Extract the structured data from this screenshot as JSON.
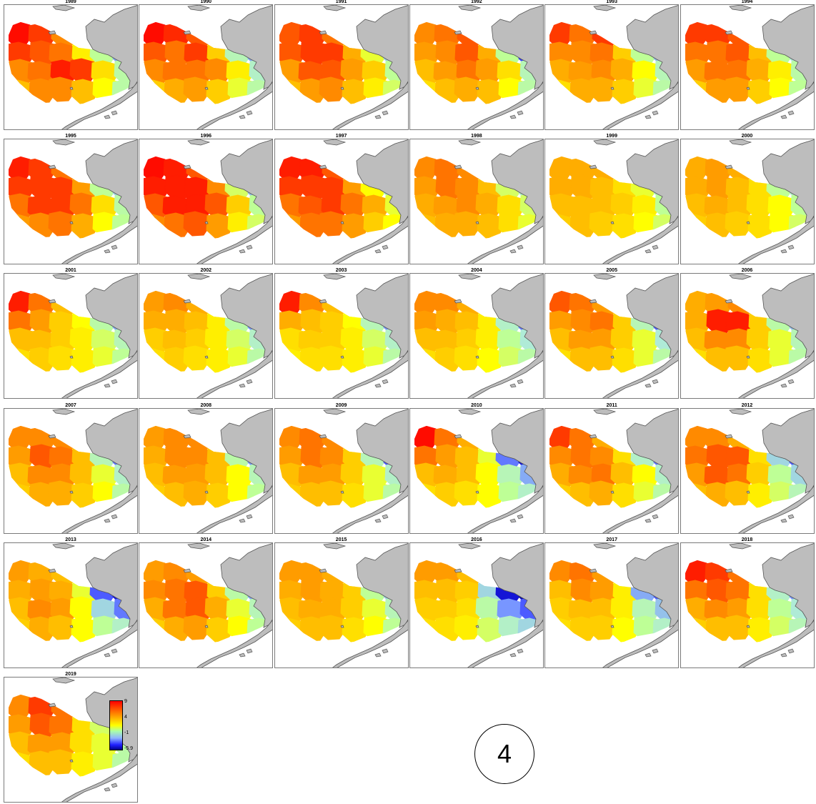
{
  "panels": [
    {
      "year": "1989",
      "levels": [
        8.8,
        8.0,
        6.5,
        3.5,
        0.5,
        -4.5,
        8.0,
        7.5,
        7.0,
        3.5,
        1.5,
        -2.0,
        6.5,
        7.0,
        8.5,
        8.0,
        4.0,
        1.0,
        5.0,
        6.5,
        6.5,
        5.0,
        3.0,
        1.0,
        4.0,
        4.5,
        3.5,
        2.0
      ]
    },
    {
      "year": "1990",
      "levels": [
        8.8,
        8.3,
        7.5,
        5.5,
        1.0,
        -3.5,
        7.5,
        7.0,
        8.0,
        4.5,
        0.5,
        -2.0,
        6.5,
        7.0,
        7.0,
        6.5,
        3.5,
        0.0,
        4.5,
        5.5,
        6.0,
        4.5,
        2.5,
        1.0,
        3.5,
        4.0,
        3.0,
        1.5
      ]
    },
    {
      "year": "1991",
      "levels": [
        7.5,
        8.0,
        7.0,
        5.0,
        1.0,
        -1.5,
        7.5,
        8.0,
        8.0,
        5.5,
        2.5,
        -1.0,
        6.0,
        7.5,
        7.5,
        6.0,
        4.5,
        1.5,
        5.0,
        6.0,
        6.5,
        5.0,
        3.5,
        2.0,
        3.5,
        4.5,
        3.5,
        2.0
      ]
    },
    {
      "year": "1992",
      "levels": [
        6.5,
        7.0,
        7.5,
        5.0,
        1.0,
        -3.0,
        6.0,
        6.5,
        7.5,
        5.5,
        1.5,
        -4.0,
        5.0,
        6.0,
        7.0,
        6.0,
        4.0,
        0.5,
        4.0,
        5.0,
        5.5,
        5.0,
        3.0,
        1.0,
        3.0,
        3.5,
        3.0,
        2.0
      ]
    },
    {
      "year": "1993",
      "levels": [
        8.0,
        7.0,
        8.0,
        5.0,
        1.0,
        -3.5,
        6.5,
        6.5,
        7.0,
        4.5,
        1.5,
        -1.5,
        5.5,
        6.0,
        6.5,
        5.5,
        3.0,
        0.5,
        4.0,
        5.5,
        5.5,
        4.5,
        2.5,
        1.0,
        3.0,
        4.0,
        3.0,
        1.5
      ]
    },
    {
      "year": "1994",
      "levels": [
        8.0,
        8.0,
        7.5,
        5.0,
        2.0,
        0.0,
        7.0,
        7.0,
        7.5,
        5.0,
        1.5,
        -0.5,
        6.0,
        7.0,
        7.0,
        5.5,
        3.5,
        1.0,
        4.5,
        6.0,
        6.0,
        4.5,
        3.0,
        1.5,
        3.5,
        4.5,
        3.5,
        2.0
      ]
    },
    {
      "year": "1995",
      "levels": [
        8.5,
        8.0,
        7.0,
        4.5,
        0.5,
        -2.0,
        8.0,
        8.0,
        8.0,
        6.0,
        1.5,
        -1.0,
        7.0,
        8.0,
        8.0,
        7.0,
        4.0,
        1.0,
        6.0,
        6.5,
        7.0,
        5.5,
        3.0,
        1.5,
        4.5,
        5.0,
        4.0,
        2.5
      ]
    },
    {
      "year": "1996",
      "levels": [
        8.8,
        8.5,
        7.5,
        5.0,
        1.0,
        -2.5,
        8.5,
        8.5,
        8.5,
        6.5,
        2.0,
        -1.5,
        7.5,
        8.5,
        8.5,
        7.5,
        4.5,
        1.5,
        6.5,
        7.0,
        7.5,
        6.0,
        3.5,
        2.0,
        5.0,
        5.5,
        4.5,
        3.0
      ]
    },
    {
      "year": "1997",
      "levels": [
        8.5,
        8.5,
        7.5,
        5.0,
        1.5,
        -1.0,
        8.0,
        8.0,
        8.0,
        6.0,
        3.0,
        0.5,
        7.0,
        7.5,
        8.0,
        7.0,
        5.5,
        2.5,
        6.0,
        7.0,
        7.0,
        6.0,
        4.5,
        3.0,
        5.0,
        5.5,
        4.5,
        3.5
      ]
    },
    {
      "year": "1998",
      "levels": [
        6.5,
        7.0,
        6.5,
        4.5,
        1.0,
        -1.5,
        6.0,
        7.0,
        6.5,
        5.0,
        2.0,
        0.0,
        5.5,
        6.0,
        6.5,
        5.5,
        4.0,
        2.0,
        5.0,
        5.5,
        5.5,
        5.0,
        4.0,
        2.5,
        4.0,
        4.5,
        4.0,
        3.5
      ]
    },
    {
      "year": "1999",
      "levels": [
        5.5,
        5.5,
        5.5,
        4.0,
        2.0,
        0.0,
        5.5,
        5.5,
        5.0,
        4.0,
        2.5,
        0.5,
        5.0,
        5.0,
        5.0,
        4.5,
        3.5,
        1.5,
        4.5,
        5.0,
        4.5,
        4.0,
        3.0,
        2.0,
        4.0,
        4.5,
        4.0,
        3.5
      ]
    },
    {
      "year": "2000",
      "levels": [
        5.5,
        6.0,
        5.5,
        4.0,
        1.0,
        -1.0,
        5.5,
        6.0,
        5.0,
        4.0,
        1.5,
        0.0,
        5.0,
        5.5,
        5.0,
        4.0,
        3.0,
        1.5,
        4.5,
        5.0,
        4.5,
        4.0,
        3.0,
        2.0,
        4.0,
        4.5,
        3.5,
        3.0
      ]
    },
    {
      "year": "2001",
      "levels": [
        8.5,
        7.0,
        5.0,
        3.0,
        1.0,
        -3.5,
        7.0,
        6.0,
        4.5,
        3.0,
        1.0,
        -2.0,
        5.0,
        5.0,
        4.5,
        3.5,
        2.0,
        0.5,
        4.0,
        4.5,
        4.0,
        3.5,
        2.5,
        1.5,
        3.0,
        4.0,
        3.5,
        2.5
      ]
    },
    {
      "year": "2002",
      "levels": [
        6.0,
        6.5,
        5.5,
        3.5,
        0.5,
        -4.0,
        5.5,
        5.5,
        5.0,
        3.5,
        1.0,
        -2.5,
        4.5,
        5.0,
        4.5,
        3.5,
        2.0,
        0.0,
        4.0,
        4.5,
        4.0,
        3.5,
        2.5,
        1.0,
        3.0,
        4.0,
        3.5,
        2.5
      ]
    },
    {
      "year": "2003",
      "levels": [
        8.5,
        6.5,
        5.0,
        3.0,
        -2.5,
        -4.5,
        5.5,
        5.0,
        4.5,
        3.0,
        0.5,
        -2.5,
        4.0,
        4.5,
        4.5,
        3.5,
        2.0,
        0.0,
        3.5,
        4.0,
        4.0,
        3.5,
        2.5,
        1.0,
        2.5,
        3.5,
        3.0,
        2.0
      ]
    },
    {
      "year": "2004",
      "levels": [
        6.5,
        6.5,
        5.5,
        3.5,
        -1.5,
        -4.5,
        6.0,
        5.5,
        5.0,
        3.5,
        0.0,
        -3.0,
        5.0,
        5.0,
        4.5,
        3.5,
        1.5,
        -0.5,
        4.0,
        4.5,
        4.0,
        3.0,
        2.0,
        1.0,
        3.0,
        3.5,
        3.0,
        2.0
      ]
    },
    {
      "year": "2005",
      "levels": [
        7.5,
        7.0,
        6.0,
        4.0,
        -1.0,
        -4.5,
        6.0,
        6.5,
        7.0,
        4.5,
        0.5,
        -3.5,
        5.0,
        6.0,
        6.0,
        4.5,
        2.5,
        -0.5,
        4.0,
        5.0,
        5.0,
        4.0,
        2.5,
        1.0,
        3.5,
        4.0,
        3.5,
        2.0
      ]
    },
    {
      "year": "2006",
      "levels": [
        5.5,
        6.0,
        6.5,
        3.0,
        0.5,
        -3.0,
        5.5,
        8.5,
        8.5,
        4.5,
        1.0,
        -1.5,
        5.0,
        6.5,
        6.5,
        4.5,
        2.5,
        0.5,
        4.0,
        5.0,
        5.0,
        4.0,
        2.5,
        1.0,
        3.5,
        4.0,
        3.5,
        2.0
      ]
    },
    {
      "year": "2007",
      "levels": [
        6.5,
        6.5,
        6.5,
        4.0,
        -1.0,
        -4.0,
        6.0,
        7.5,
        7.0,
        5.0,
        0.5,
        -3.0,
        5.0,
        6.5,
        6.5,
        5.0,
        2.5,
        0.0,
        4.5,
        5.5,
        5.5,
        4.5,
        3.0,
        1.0,
        3.5,
        4.5,
        4.0,
        2.5
      ]
    },
    {
      "year": "2008",
      "levels": [
        6.0,
        6.5,
        6.5,
        4.0,
        -0.5,
        -4.0,
        5.5,
        6.5,
        6.5,
        5.0,
        1.0,
        -2.5,
        5.0,
        6.0,
        6.0,
        5.0,
        3.0,
        0.5,
        4.5,
        5.0,
        5.5,
        4.5,
        3.0,
        1.5,
        3.5,
        4.5,
        4.0,
        2.5
      ]
    },
    {
      "year": "2009",
      "levels": [
        6.5,
        7.0,
        6.5,
        4.0,
        -2.0,
        -4.5,
        6.0,
        7.0,
        6.5,
        4.5,
        0.5,
        -3.5,
        5.0,
        6.0,
        6.0,
        4.5,
        2.5,
        0.0,
        4.5,
        5.0,
        5.0,
        4.0,
        2.5,
        1.0,
        3.5,
        4.0,
        3.5,
        2.5
      ]
    },
    {
      "year": "2010",
      "levels": [
        8.8,
        7.0,
        5.5,
        1.5,
        -4.5,
        -5.5,
        7.0,
        6.0,
        5.0,
        2.5,
        -3.0,
        -5.0,
        5.0,
        5.5,
        5.0,
        3.0,
        0.5,
        -2.0,
        4.0,
        4.5,
        4.0,
        3.0,
        1.5,
        0.0,
        3.0,
        3.5,
        3.0,
        2.0
      ]
    },
    {
      "year": "2011",
      "levels": [
        8.0,
        7.0,
        5.5,
        3.0,
        -3.0,
        -4.5,
        6.5,
        7.0,
        6.5,
        4.0,
        0.0,
        -3.0,
        5.5,
        6.5,
        7.0,
        5.0,
        3.0,
        0.0,
        4.5,
        5.0,
        5.5,
        4.0,
        2.5,
        1.0,
        3.5,
        4.0,
        3.5,
        2.5
      ]
    },
    {
      "year": "2012",
      "levels": [
        6.5,
        6.5,
        5.5,
        2.5,
        -3.0,
        -4.0,
        7.0,
        7.5,
        7.5,
        4.0,
        -1.0,
        -3.5,
        6.0,
        7.5,
        7.0,
        4.5,
        1.5,
        -1.0,
        5.0,
        5.5,
        5.0,
        3.5,
        2.0,
        0.5,
        3.5,
        4.5,
        3.5,
        2.0
      ]
    },
    {
      "year": "2013",
      "levels": [
        6.0,
        5.5,
        5.0,
        0.5,
        -4.5,
        -5.5,
        5.5,
        6.0,
        5.5,
        2.5,
        -3.5,
        -5.0,
        5.0,
        6.5,
        6.0,
        3.0,
        -1.0,
        -3.0,
        4.5,
        5.5,
        5.0,
        3.0,
        1.5,
        0.0,
        3.5,
        4.0,
        3.0,
        2.0
      ]
    },
    {
      "year": "2014",
      "levels": [
        6.0,
        6.5,
        6.0,
        3.5,
        -1.5,
        -4.0,
        6.5,
        7.0,
        7.5,
        4.5,
        1.0,
        -2.0,
        5.5,
        7.0,
        7.5,
        5.5,
        2.5,
        0.5,
        4.5,
        5.5,
        6.0,
        4.5,
        3.0,
        1.5,
        3.5,
        4.5,
        4.0,
        2.5
      ]
    },
    {
      "year": "2015",
      "levels": [
        6.0,
        6.0,
        5.5,
        4.0,
        0.0,
        -3.0,
        5.5,
        6.0,
        5.5,
        4.5,
        1.5,
        -1.0,
        5.0,
        5.5,
        5.5,
        4.5,
        2.5,
        0.5,
        4.5,
        5.0,
        5.0,
        4.0,
        3.0,
        1.5,
        3.5,
        4.5,
        4.0,
        3.0
      ]
    },
    {
      "year": "2016",
      "levels": [
        6.0,
        6.0,
        5.0,
        -0.5,
        -5.5,
        -5.9,
        5.0,
        5.0,
        4.5,
        -1.0,
        -5.0,
        -5.5,
        4.5,
        4.5,
        4.0,
        1.0,
        -2.5,
        -3.5,
        4.0,
        4.0,
        3.5,
        2.0,
        0.0,
        -1.0,
        3.0,
        3.5,
        3.0,
        2.0
      ]
    },
    {
      "year": "2017",
      "levels": [
        6.5,
        7.0,
        6.0,
        2.0,
        -3.5,
        -4.5,
        5.0,
        6.5,
        6.0,
        3.5,
        -2.0,
        -3.5,
        4.5,
        5.0,
        5.0,
        3.5,
        0.5,
        -1.5,
        4.0,
        4.5,
        4.5,
        3.0,
        1.5,
        0.0,
        3.0,
        3.5,
        3.0,
        2.0
      ]
    },
    {
      "year": "2018",
      "levels": [
        8.5,
        8.0,
        7.0,
        3.5,
        -1.0,
        -3.5,
        7.0,
        7.5,
        7.0,
        4.0,
        0.0,
        -2.5,
        5.5,
        6.5,
        6.0,
        4.0,
        1.5,
        -0.5,
        4.5,
        5.0,
        5.0,
        3.5,
        2.0,
        0.5,
        3.5,
        4.0,
        3.0,
        2.0
      ]
    },
    {
      "year": "2019",
      "levels": [
        6.5,
        8.0,
        7.0,
        3.5,
        1.0,
        0.0,
        6.0,
        7.5,
        7.0,
        4.0,
        2.0,
        0.5,
        5.0,
        6.0,
        6.0,
        4.0,
        2.5,
        1.0,
        4.0,
        5.0,
        5.0,
        3.5,
        2.5,
        1.0,
        3.5,
        4.0,
        3.5,
        2.0
      ]
    }
  ],
  "legend": {
    "ticks": [
      "9",
      "4",
      "-1",
      "-5.9"
    ],
    "tick_values": [
      9,
      4,
      -1,
      -5.9
    ]
  },
  "figure_label": "4",
  "colors": {
    "land": "#bdbdbd",
    "land_outline": "#555555",
    "frame": "#7a7a7a",
    "scale": [
      "#00008b",
      "#2020ff",
      "#8fb4ff",
      "#aaffaa",
      "#ffff00",
      "#ff8000",
      "#ff0000"
    ]
  }
}
